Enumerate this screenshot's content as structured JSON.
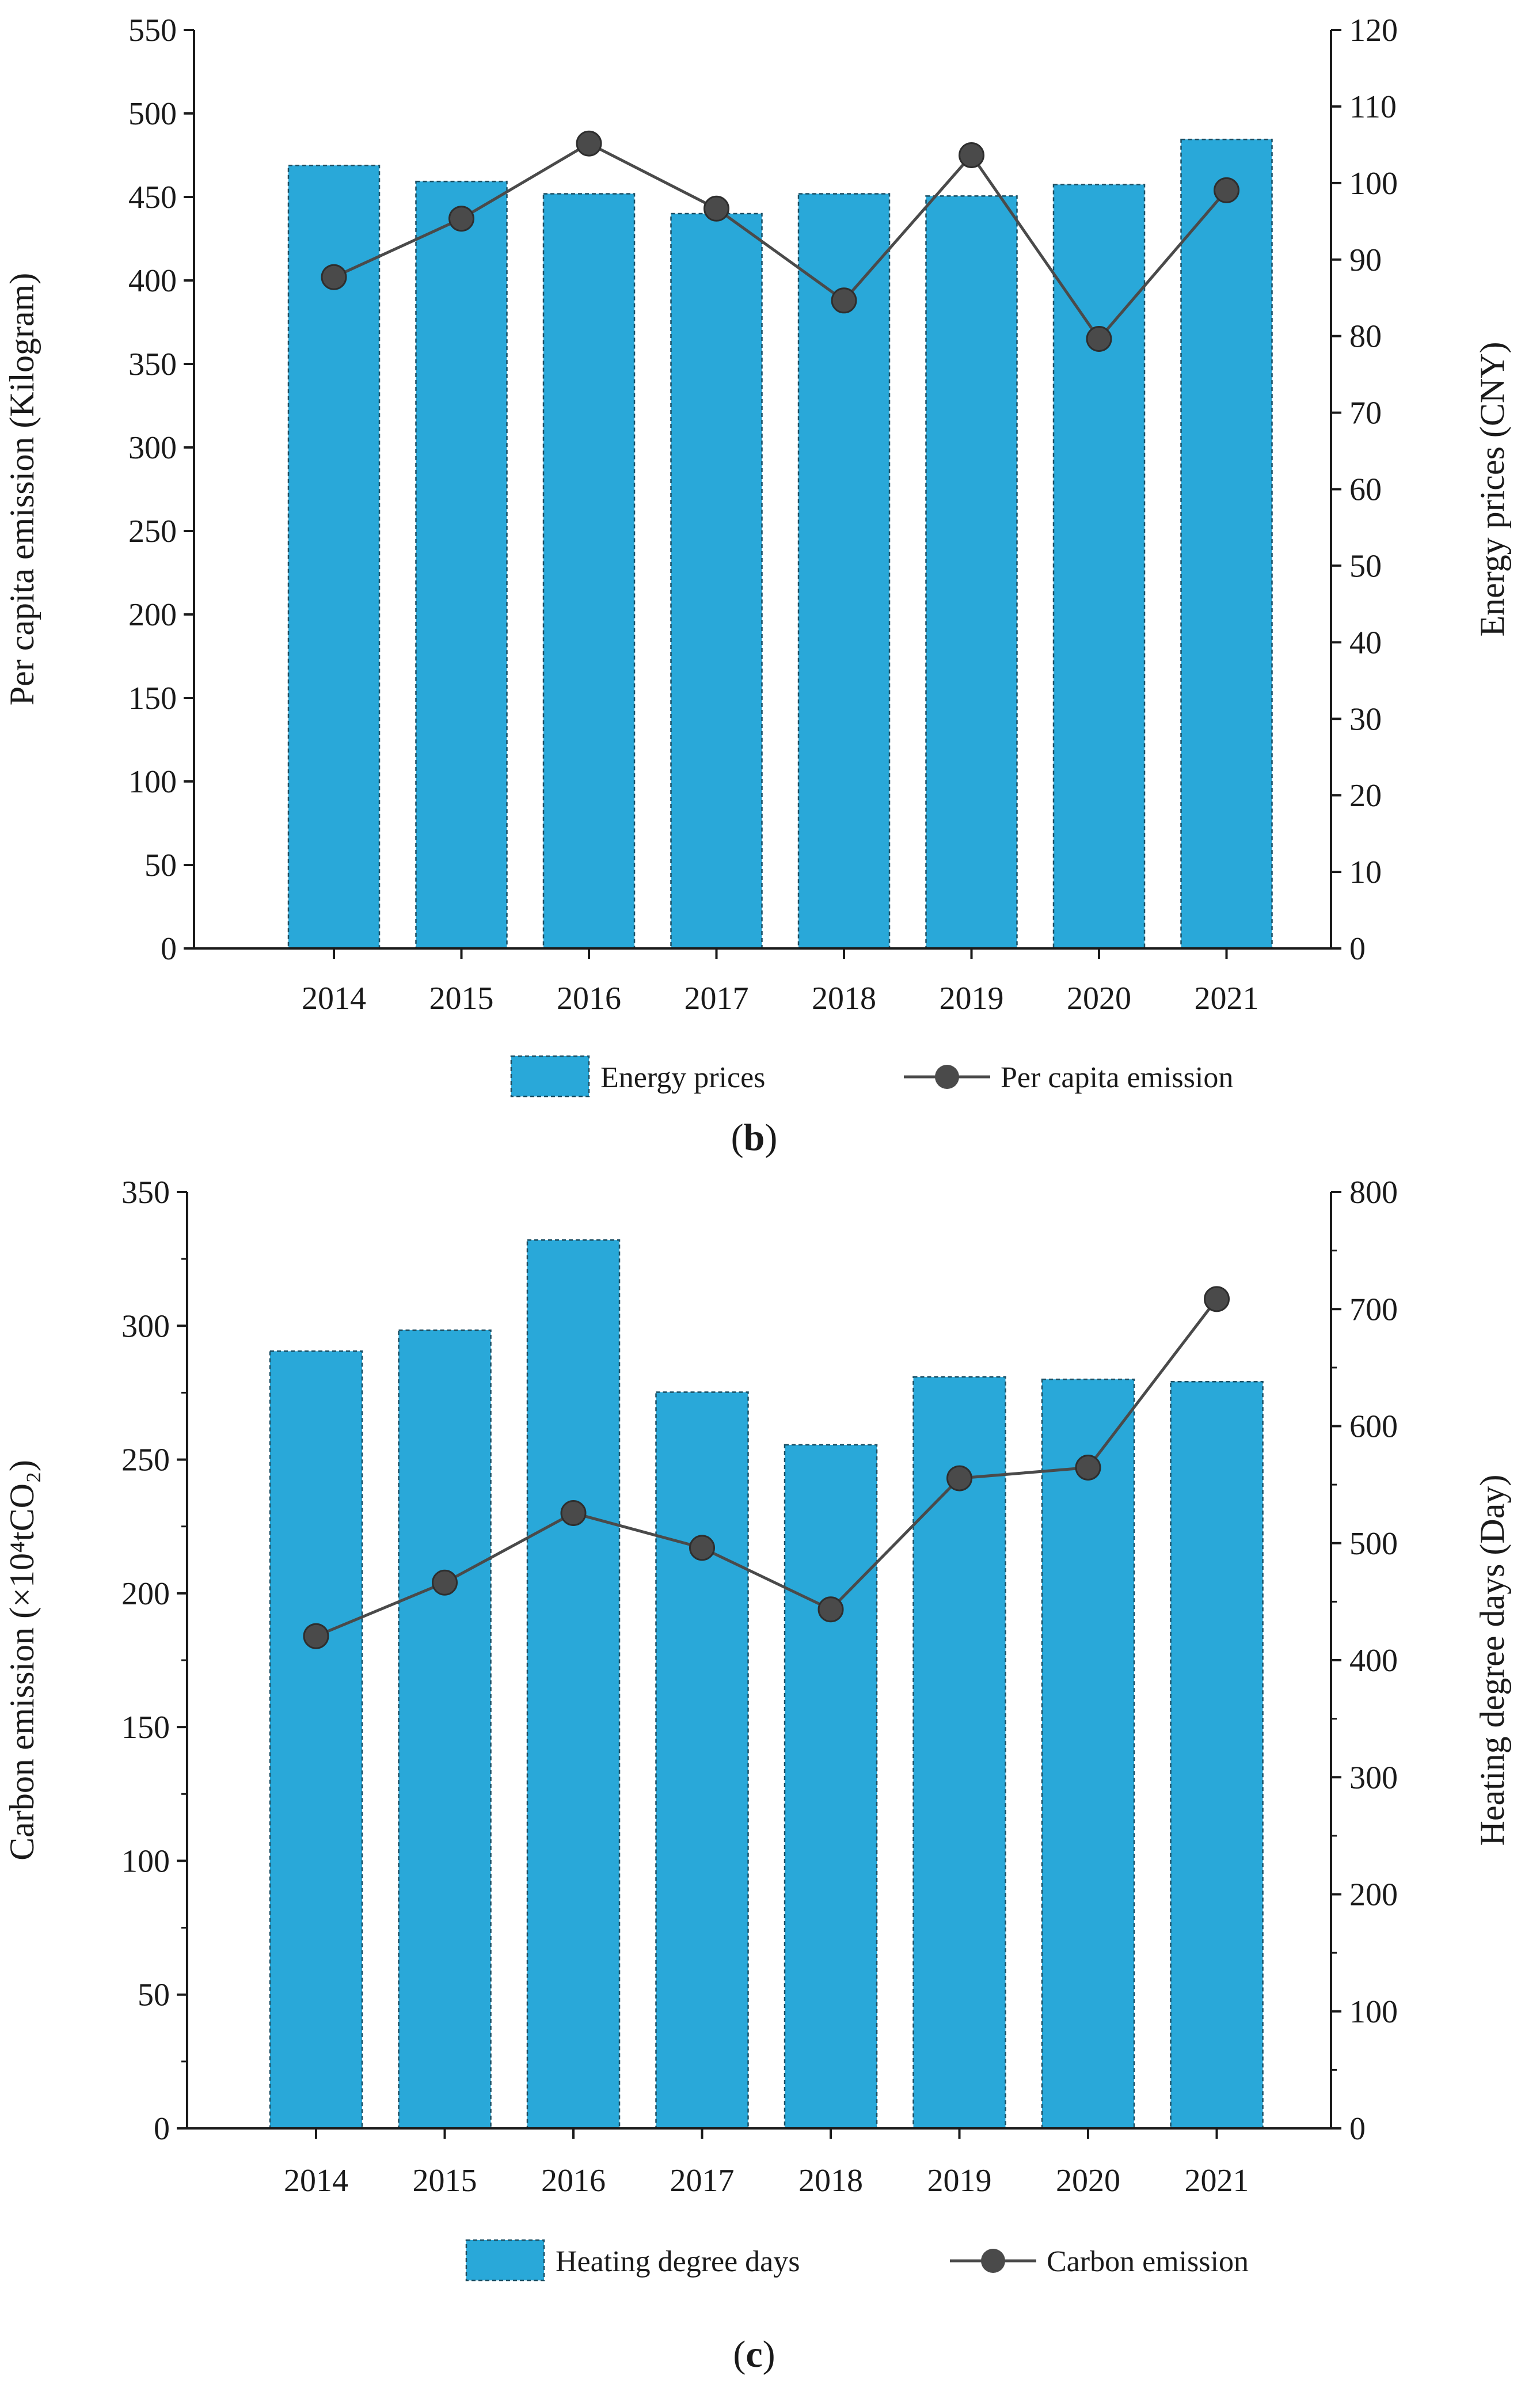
{
  "colors": {
    "bar": "#29a8d9",
    "line": "#4a4a4a",
    "marker": "#4a4a4a",
    "axis": "#1a1a1a"
  },
  "chart_data": [
    {
      "type": "bar+line",
      "panel_label_open": "(",
      "panel_label_letter": "b",
      "panel_label_close": ")",
      "categories": [
        "2014",
        "2015",
        "2016",
        "2017",
        "2018",
        "2019",
        "2020",
        "2021"
      ],
      "bar_series": {
        "name": "Energy prices",
        "axis": "right",
        "values": [
          102.3,
          100.2,
          98.6,
          96.0,
          98.6,
          98.3,
          99.8,
          105.7
        ]
      },
      "line_series": {
        "name": "Per capita emission",
        "axis": "left",
        "values": [
          402,
          437,
          482,
          443,
          388,
          475,
          365,
          454
        ]
      },
      "left_axis": {
        "label": "Per capita emission (Kilogram)",
        "range": [
          0,
          550
        ],
        "ticks": [
          "0",
          "50",
          "100",
          "150",
          "200",
          "250",
          "300",
          "350",
          "400",
          "450",
          "500",
          "550"
        ]
      },
      "right_axis": {
        "label": "Energy prices (CNY)",
        "range": [
          0,
          120
        ],
        "ticks": [
          "0",
          "10",
          "20",
          "30",
          "40",
          "50",
          "60",
          "70",
          "80",
          "90",
          "100",
          "110",
          "120"
        ]
      },
      "legend": {
        "bar_label": "Energy prices",
        "line_label": "Per capita emission",
        "position": "bottom"
      }
    },
    {
      "type": "bar+line",
      "panel_label_open": "(",
      "panel_label_letter": "c",
      "panel_label_close": ")",
      "categories": [
        "2014",
        "2015",
        "2016",
        "2017",
        "2018",
        "2019",
        "2020",
        "2021"
      ],
      "bar_series": {
        "name": "Heating degree days",
        "axis": "right",
        "values": [
          664,
          682,
          759,
          629,
          584,
          642,
          640,
          638
        ]
      },
      "line_series": {
        "name": "Carbon emission",
        "axis": "left",
        "values": [
          184,
          204,
          230,
          217,
          194,
          243,
          247,
          310
        ]
      },
      "left_axis": {
        "label": "Carbon emission (×10⁴tCO₂)",
        "range": [
          0,
          350
        ],
        "ticks": [
          "0",
          "50",
          "100",
          "150",
          "200",
          "250",
          "300",
          "350"
        ]
      },
      "right_axis": {
        "label": "Heating degree days (Day)",
        "range": [
          0,
          800
        ],
        "ticks": [
          "0",
          "100",
          "200",
          "300",
          "400",
          "500",
          "600",
          "700",
          "800"
        ]
      },
      "legend": {
        "bar_label": "Heating degree days",
        "line_label": "Carbon emission",
        "position": "bottom"
      }
    }
  ]
}
